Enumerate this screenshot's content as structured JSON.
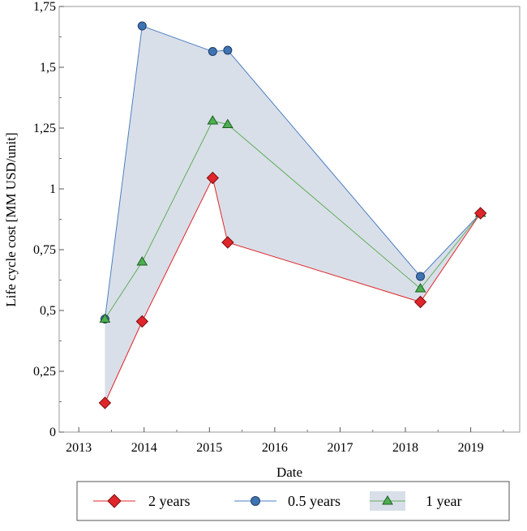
{
  "chart_data": {
    "type": "line",
    "xlabel": "Date",
    "ylabel": "Life cycle cost [MM USD/unit]",
    "xlim": [
      2012.7,
      2019.75
    ],
    "ylim": [
      0,
      1.75
    ],
    "x_ticks": [
      2013,
      2014,
      2015,
      2016,
      2017,
      2018,
      2019
    ],
    "x_tick_labels": [
      "2013",
      "2014",
      "2015",
      "2016",
      "2017",
      "2018",
      "2019"
    ],
    "y_ticks": [
      0,
      0.25,
      0.5,
      0.75,
      1,
      1.25,
      1.5,
      1.75
    ],
    "y_tick_labels": [
      "0",
      "0,25",
      "0,5",
      "0,75",
      "1",
      "1,25",
      "1,5",
      "1,75"
    ],
    "grid": false,
    "legend_position": "bottom",
    "band": {
      "lower_series": "2 years",
      "upper_series": "0.5 years",
      "color": "#d9dfe9"
    },
    "series": [
      {
        "name": "2 years",
        "marker": "diamond",
        "line_color": "#e0262b",
        "marker_color": "#e0262b",
        "x": [
          2013.4,
          2013.97,
          2015.05,
          2015.28,
          2018.23,
          2019.15
        ],
        "y": [
          0.12,
          0.455,
          1.045,
          0.78,
          0.535,
          0.9
        ]
      },
      {
        "name": "0.5 years",
        "marker": "circle",
        "line_color": "#4d7fc0",
        "marker_color": "#3f74b3",
        "x": [
          2013.4,
          2013.97,
          2015.05,
          2015.28,
          2018.23,
          2019.15
        ],
        "y": [
          0.465,
          1.67,
          1.565,
          1.57,
          0.64,
          0.9
        ]
      },
      {
        "name": "1 year",
        "marker": "triangle",
        "line_color": "#5fae5a",
        "marker_color": "#4caf50",
        "x": [
          2013.4,
          2013.97,
          2015.05,
          2015.28,
          2018.23,
          2019.15
        ],
        "y": [
          0.465,
          0.7,
          1.28,
          1.265,
          0.59,
          0.9
        ]
      }
    ]
  },
  "legend": {
    "items": [
      {
        "label": "2 years",
        "marker": "diamond"
      },
      {
        "label": "0.5 years",
        "marker": "circle"
      },
      {
        "label": "1 year",
        "marker": "triangle"
      }
    ]
  }
}
